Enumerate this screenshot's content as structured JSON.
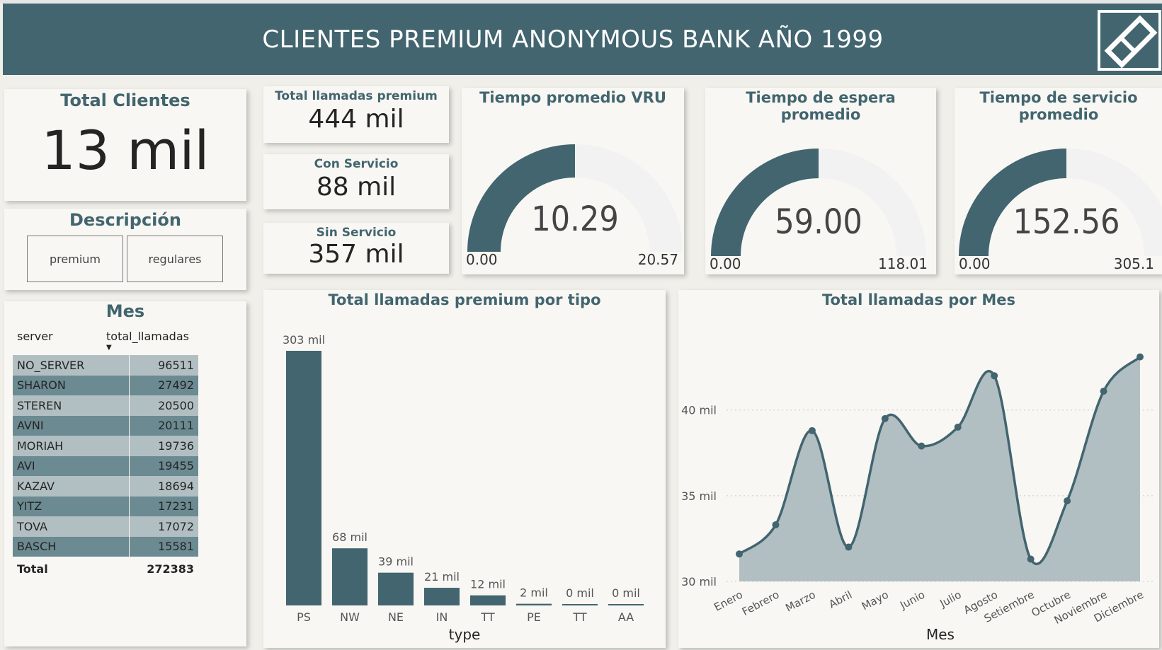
{
  "header": {
    "title": "CLIENTES PREMIUM ANONYMOUS BANK AÑO 1999"
  },
  "colors": {
    "accent": "#42656f",
    "gauge_track": "#f2f2f2",
    "area_fill": "#b2bfc2",
    "row_light": "#b2bfc2",
    "row_dark": "#6b8a92"
  },
  "total_clientes": {
    "title": "Total Clientes",
    "value": "13 mil"
  },
  "descripcion": {
    "title": "Descripción",
    "options": [
      "premium",
      "regulares"
    ]
  },
  "mes_table": {
    "title": "Mes",
    "columns": [
      "server",
      "total_llamadas"
    ],
    "rows": [
      [
        "NO_SERVER",
        "96511"
      ],
      [
        "SHARON",
        "27492"
      ],
      [
        "STEREN",
        "20500"
      ],
      [
        "AVNI",
        "20111"
      ],
      [
        "MORIAH",
        "19736"
      ],
      [
        "AVI",
        "19455"
      ],
      [
        "KAZAV",
        "18694"
      ],
      [
        "YITZ",
        "17231"
      ],
      [
        "TOVA",
        "17072"
      ],
      [
        "BASCH",
        "15581"
      ]
    ],
    "total_label": "Total",
    "total_value": "272383"
  },
  "kpis": [
    {
      "title": "Total llamadas premium",
      "value": "444 mil"
    },
    {
      "title": "Con Servicio",
      "value": "88 mil"
    },
    {
      "title": "Sin Servicio",
      "value": "357 mil"
    }
  ],
  "gauges": [
    {
      "title": "Tiempo promedio VRU",
      "value": "10.29",
      "min": "0.00",
      "max": "20.57",
      "fraction": 0.5
    },
    {
      "title": "Tiempo de espera promedio",
      "value": "59.00",
      "min": "0.00",
      "max": "118.01",
      "fraction": 0.5
    },
    {
      "title": "Tiempo de servicio promedio",
      "value": "152.56",
      "min": "0.00",
      "max": "305.1",
      "fraction": 0.5
    }
  ],
  "chart_data": [
    {
      "type": "bar",
      "title": "Total llamadas premium por tipo",
      "xlabel": "type",
      "ylabel": "",
      "categories": [
        "PS",
        "NW",
        "NE",
        "IN",
        "TT",
        "PE",
        "TT",
        "AA"
      ],
      "values": [
        303,
        68,
        39,
        21,
        12,
        2,
        0,
        0
      ],
      "data_labels": [
        "303 mil",
        "68 mil",
        "39 mil",
        "21 mil",
        "12 mil",
        "2 mil",
        "0 mil",
        "0 mil"
      ],
      "ylim": [
        0,
        303
      ],
      "color": "#42656f"
    },
    {
      "type": "area",
      "title": "Total llamadas por Mes",
      "xlabel": "Mes",
      "ylabel": "",
      "categories": [
        "Enero",
        "Febrero",
        "Marzo",
        "Abril",
        "Mayo",
        "Junio",
        "Julio",
        "Agosto",
        "Setiembre",
        "Octubre",
        "Noviembre",
        "Diciembre"
      ],
      "values": [
        31.6,
        33.3,
        38.8,
        32.0,
        39.5,
        37.9,
        39.0,
        42.0,
        31.3,
        34.7,
        41.1,
        43.1
      ],
      "unit": "mil",
      "yticks": [
        30,
        35,
        40
      ],
      "ytick_labels": [
        "30 mil",
        "35 mil",
        "40 mil"
      ],
      "ylim": [
        30,
        44.2
      ],
      "grid": true
    }
  ]
}
